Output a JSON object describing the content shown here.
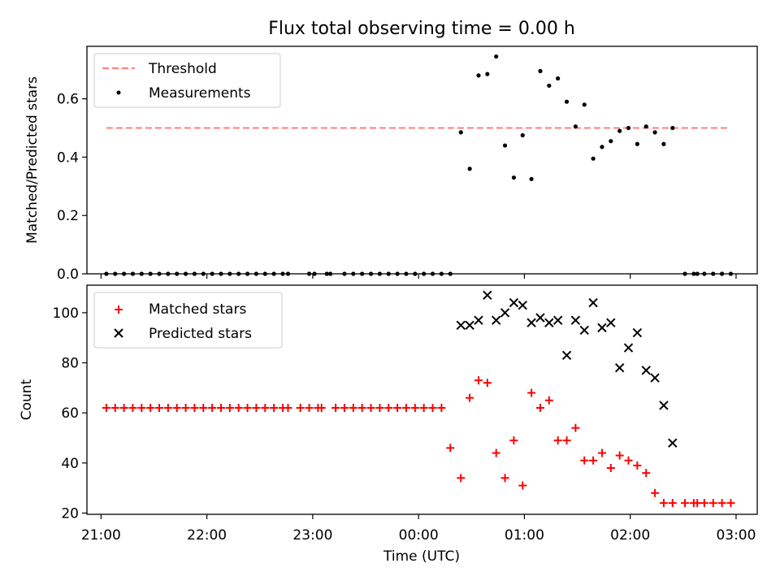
{
  "chart_data": [
    {
      "type": "scatter",
      "title": "Flux total observing time = 0.00 h",
      "ylabel": "Matched/Predicted stars",
      "xlabel": "",
      "xlim": [
        "20:52",
        "03:12"
      ],
      "ylim": [
        0,
        0.78
      ],
      "yticks": [
        0.0,
        0.2,
        0.4,
        0.6
      ],
      "ytick_labels": [
        "0.0",
        "0.2",
        "0.4",
        "0.6"
      ],
      "grid": false,
      "legend_position": "top-left",
      "series": [
        {
          "name": "Threshold",
          "style": "dashed-line",
          "color": "#ff7f7f",
          "x": [
            "21:03",
            "02:55"
          ],
          "y": [
            0.5,
            0.5
          ]
        },
        {
          "name": "Measurements",
          "style": "dot",
          "color": "#000000",
          "x": [
            "21:03",
            "21:08",
            "21:13",
            "21:18",
            "21:23",
            "21:28",
            "21:33",
            "21:38",
            "21:43",
            "21:48",
            "21:53",
            "21:58",
            "22:03",
            "22:08",
            "22:13",
            "22:18",
            "22:23",
            "22:28",
            "22:33",
            "22:38",
            "22:43",
            "22:46",
            "22:58",
            "23:01",
            "23:08",
            "23:10",
            "23:18",
            "23:23",
            "23:28",
            "23:33",
            "23:38",
            "23:43",
            "23:48",
            "23:53",
            "23:58",
            "00:03",
            "00:08",
            "00:13",
            "00:18",
            "00:24",
            "00:29",
            "00:34",
            "00:39",
            "00:44",
            "00:49",
            "00:54",
            "00:59",
            "01:04",
            "01:09",
            "01:14",
            "01:19",
            "01:24",
            "01:29",
            "01:34",
            "01:39",
            "01:44",
            "01:49",
            "01:54",
            "01:59",
            "02:04",
            "02:09",
            "02:14",
            "02:19",
            "02:24",
            "02:31",
            "02:36",
            "02:38",
            "02:42",
            "02:47",
            "02:52",
            "02:57"
          ],
          "y": [
            0,
            0,
            0,
            0,
            0,
            0,
            0,
            0,
            0,
            0,
            0,
            0,
            0,
            0,
            0,
            0,
            0,
            0,
            0,
            0,
            0,
            0,
            0,
            0,
            0,
            0,
            0,
            0,
            0,
            0,
            0,
            0,
            0,
            0,
            0,
            0,
            0,
            0,
            0,
            0.485,
            0.36,
            0.68,
            0.685,
            0.745,
            0.44,
            0.33,
            0.475,
            0.325,
            0.695,
            0.645,
            0.67,
            0.59,
            0.505,
            0.58,
            0.395,
            0.435,
            0.455,
            0.49,
            0.5,
            0.445,
            0.505,
            0.485,
            0.445,
            0.5,
            0,
            0,
            0,
            0,
            0,
            0,
            0
          ]
        }
      ]
    },
    {
      "type": "scatter",
      "title": "",
      "ylabel": "Count",
      "xlabel": "Time (UTC)",
      "xlim": [
        "20:52",
        "03:12"
      ],
      "xticks": [
        "21:00",
        "22:00",
        "23:00",
        "00:00",
        "01:00",
        "02:00",
        "03:00"
      ],
      "ylim": [
        19.5,
        111
      ],
      "yticks": [
        20,
        40,
        60,
        80,
        100
      ],
      "ytick_labels": [
        "20",
        "40",
        "60",
        "80",
        "100"
      ],
      "grid": false,
      "legend_position": "top-left",
      "series": [
        {
          "name": "Matched stars",
          "marker": "plus",
          "color": "#ff0000",
          "x": [
            "21:03",
            "21:08",
            "21:13",
            "21:18",
            "21:23",
            "21:28",
            "21:33",
            "21:38",
            "21:43",
            "21:48",
            "21:53",
            "21:58",
            "22:03",
            "22:08",
            "22:13",
            "22:18",
            "22:23",
            "22:28",
            "22:33",
            "22:38",
            "22:43",
            "22:46",
            "22:53",
            "22:58",
            "23:03",
            "23:05",
            "23:13",
            "23:18",
            "23:23",
            "23:28",
            "23:33",
            "23:38",
            "23:43",
            "23:48",
            "23:53",
            "23:58",
            "00:03",
            "00:08",
            "00:13",
            "00:18",
            "00:24",
            "00:29",
            "00:34",
            "00:39",
            "00:44",
            "00:49",
            "00:54",
            "00:59",
            "01:04",
            "01:09",
            "01:14",
            "01:19",
            "01:24",
            "01:29",
            "01:34",
            "01:39",
            "01:44",
            "01:49",
            "01:54",
            "01:59",
            "02:04",
            "02:09",
            "02:14",
            "02:19",
            "02:24",
            "02:31",
            "02:36",
            "02:38",
            "02:42",
            "02:47",
            "02:52",
            "02:57"
          ],
          "y": [
            62,
            62,
            62,
            62,
            62,
            62,
            62,
            62,
            62,
            62,
            62,
            62,
            62,
            62,
            62,
            62,
            62,
            62,
            62,
            62,
            62,
            62,
            62,
            62,
            62,
            62,
            62,
            62,
            62,
            62,
            62,
            62,
            62,
            62,
            62,
            62,
            62,
            62,
            62,
            46,
            34,
            66,
            73,
            72,
            44,
            34,
            49,
            31,
            68,
            62,
            65,
            49,
            49,
            54,
            41,
            41,
            44,
            38,
            43,
            41,
            39,
            36,
            28,
            24,
            24,
            24,
            24,
            24,
            24,
            24,
            24,
            24
          ]
        },
        {
          "name": "Predicted stars",
          "marker": "x",
          "color": "#000000",
          "x": [
            "00:24",
            "00:29",
            "00:34",
            "00:39",
            "00:44",
            "00:49",
            "00:54",
            "00:59",
            "01:04",
            "01:09",
            "01:14",
            "01:19",
            "01:24",
            "01:29",
            "01:34",
            "01:39",
            "01:44",
            "01:49",
            "01:54",
            "01:59",
            "02:04",
            "02:09",
            "02:14",
            "02:19",
            "02:24"
          ],
          "y": [
            95,
            95,
            97,
            107,
            97,
            100,
            104,
            103,
            96,
            98,
            96,
            97,
            83,
            97,
            93,
            104,
            94,
            96,
            78,
            86,
            92,
            77,
            74,
            63,
            48
          ]
        }
      ]
    }
  ]
}
